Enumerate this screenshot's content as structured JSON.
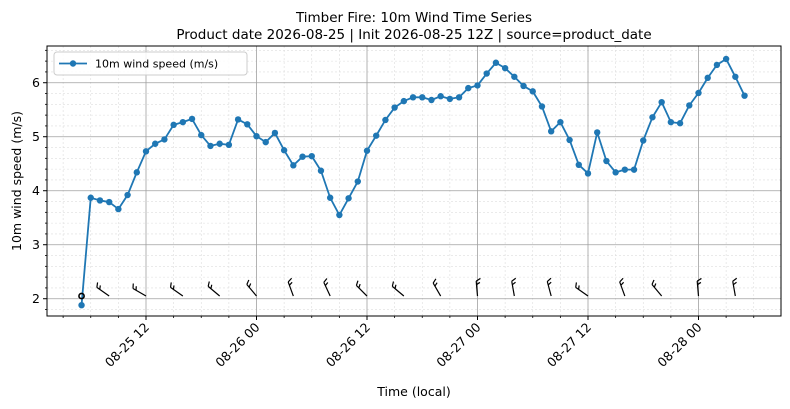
{
  "chart_data": {
    "type": "line",
    "title": "Timber Fire: 10m Wind Time Series",
    "subtitle": "Product date 2026-08-25 | Init 2026-08-25 12Z | source=product_date",
    "xlabel": "Time (local)",
    "ylabel": "10m wind speed (m/s)",
    "ylim": [
      1.68,
      6.68
    ],
    "yticks": [
      2,
      3,
      4,
      5,
      6
    ],
    "xlim_hours": [
      -8,
      37.8
    ],
    "x_origin_label": "08-25 12",
    "xticks": [
      {
        "hour": 0,
        "label": "08-25 12"
      },
      {
        "hour": 12,
        "label": "08-26 00"
      },
      {
        "hour": 24,
        "label": "08-26 12"
      },
      {
        "hour": 36,
        "label": "08-27 00"
      },
      {
        "hour": 48,
        "label": "08-27 12"
      },
      {
        "hour": 60,
        "label": "08-28 00"
      }
    ],
    "grid": true,
    "legend": {
      "position": "top-left",
      "label": "10m wind speed (m/s)"
    },
    "series": [
      {
        "name": "10m wind speed (m/s)",
        "color": "#1f77b4",
        "points": [
          [
            -7,
            1.88
          ],
          [
            -6,
            3.87
          ],
          [
            -5,
            3.82
          ],
          [
            -4,
            3.79
          ],
          [
            -3,
            3.66
          ],
          [
            -2,
            3.92
          ],
          [
            -1,
            4.34
          ],
          [
            0,
            4.73
          ],
          [
            1,
            4.87
          ],
          [
            2,
            4.95
          ],
          [
            3,
            5.22
          ],
          [
            4,
            5.27
          ],
          [
            5,
            5.33
          ],
          [
            6,
            5.03
          ],
          [
            7,
            4.83
          ],
          [
            8,
            4.87
          ],
          [
            9,
            4.85
          ],
          [
            10,
            5.32
          ],
          [
            11,
            5.23
          ],
          [
            12,
            5.01
          ],
          [
            13,
            4.9
          ],
          [
            14,
            5.07
          ],
          [
            15,
            4.75
          ],
          [
            16,
            4.47
          ],
          [
            17,
            4.63
          ],
          [
            18,
            4.64
          ],
          [
            19,
            4.37
          ],
          [
            20,
            3.87
          ],
          [
            21,
            3.55
          ],
          [
            22,
            3.86
          ],
          [
            23,
            4.17
          ],
          [
            24,
            4.74
          ],
          [
            25,
            5.02
          ],
          [
            26,
            5.31
          ],
          [
            27,
            5.54
          ],
          [
            28,
            5.66
          ],
          [
            29,
            5.73
          ],
          [
            30,
            5.73
          ],
          [
            31,
            5.68
          ],
          [
            32,
            5.75
          ],
          [
            33,
            5.7
          ],
          [
            34,
            5.73
          ],
          [
            35,
            5.9
          ],
          [
            36,
            5.95
          ],
          [
            37,
            6.17
          ],
          [
            38,
            6.37
          ],
          [
            39,
            6.27
          ],
          [
            40,
            6.11
          ],
          [
            41,
            5.94
          ],
          [
            42,
            5.84
          ],
          [
            43,
            5.56
          ],
          [
            44,
            5.1
          ],
          [
            45,
            5.27
          ],
          [
            46,
            4.94
          ],
          [
            47,
            4.48
          ],
          [
            48,
            4.32
          ],
          [
            49,
            5.08
          ],
          [
            50,
            4.55
          ],
          [
            51,
            4.34
          ],
          [
            52,
            4.39
          ],
          [
            53,
            4.39
          ],
          [
            54,
            4.93
          ],
          [
            55,
            5.36
          ],
          [
            56,
            5.64
          ],
          [
            57,
            5.27
          ],
          [
            58,
            5.25
          ],
          [
            59,
            5.58
          ],
          [
            60,
            5.81
          ],
          [
            61,
            6.09
          ],
          [
            62,
            6.33
          ],
          [
            63,
            6.44
          ],
          [
            64,
            6.11
          ],
          [
            65,
            5.76
          ]
        ]
      }
    ],
    "barbs": {
      "y": 2.05,
      "calm_marker_hour": -7,
      "hours": [
        -4,
        0,
        4,
        8,
        12,
        16,
        20,
        24,
        28,
        32,
        36,
        40,
        44,
        48,
        52,
        56,
        60,
        64
      ],
      "directions_deg": [
        305,
        300,
        305,
        310,
        320,
        340,
        335,
        315,
        310,
        330,
        355,
        350,
        345,
        305,
        340,
        320,
        355,
        350
      ]
    }
  }
}
